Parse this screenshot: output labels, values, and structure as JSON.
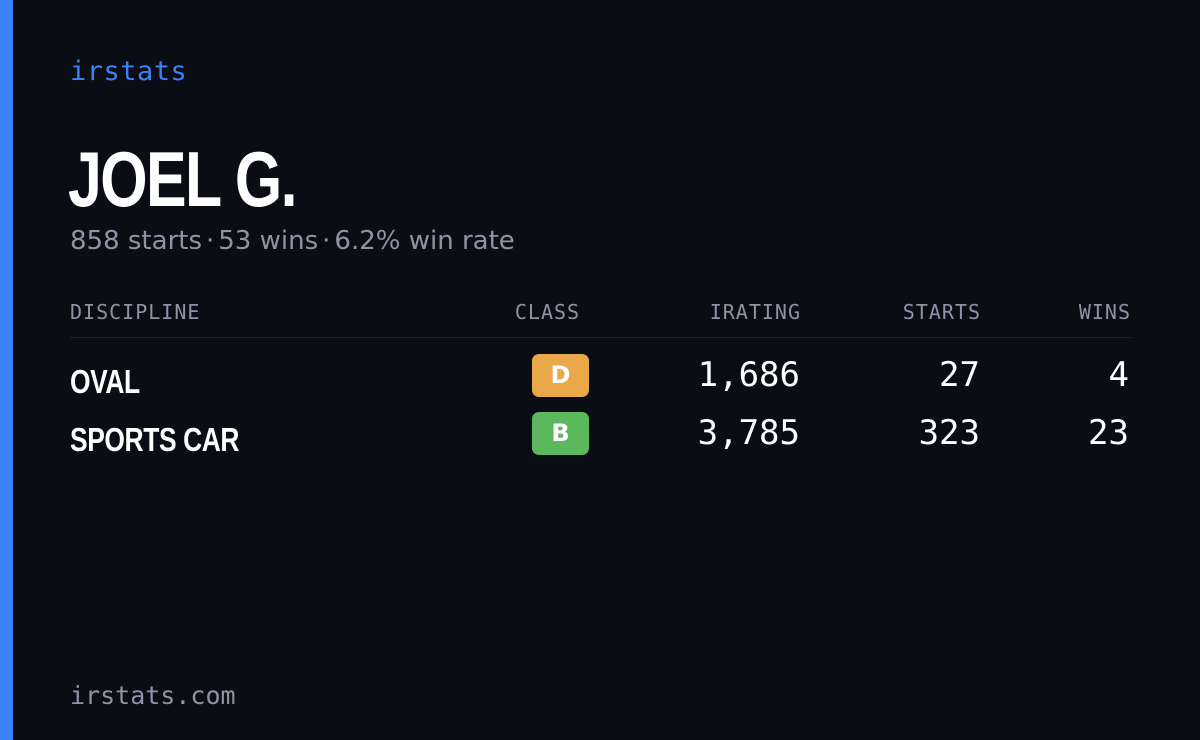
{
  "brand": "irstats",
  "driver": {
    "name": "JOEL G.",
    "summary": {
      "starts": "858 starts",
      "wins": "53 wins",
      "win_rate": "6.2% win rate",
      "separator": "·"
    }
  },
  "table": {
    "headers": {
      "discipline": "DISCIPLINE",
      "class": "CLASS",
      "irating": "IRATING",
      "starts": "STARTS",
      "wins": "WINS"
    },
    "rows": [
      {
        "discipline": "OVAL",
        "class": "D",
        "class_color": "#eaa84a",
        "irating": "1,686",
        "starts": "27",
        "wins": "4"
      },
      {
        "discipline": "SPORTS CAR",
        "class": "B",
        "class_color": "#5cb85c",
        "irating": "3,785",
        "starts": "323",
        "wins": "23"
      }
    ]
  },
  "footer": {
    "domain": "irstats.com"
  },
  "colors": {
    "accent": "#3b82f6",
    "background": "#0a0d14",
    "muted_text": "#8b95a7"
  }
}
